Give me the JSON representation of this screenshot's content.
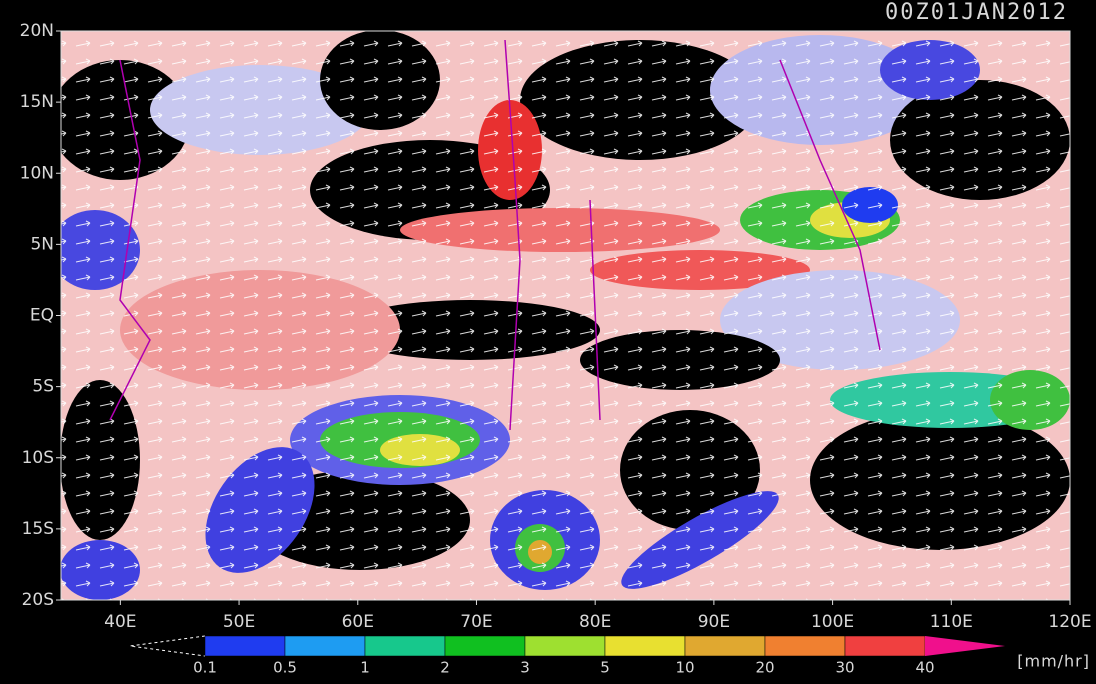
{
  "map": {
    "title": "00Z01JAN2012",
    "lonlim": [
      35,
      120
    ],
    "latlim": [
      -20,
      20
    ],
    "lon_ticks": [
      {
        "value": 40,
        "label": "40E"
      },
      {
        "value": 50,
        "label": "50E"
      },
      {
        "value": 60,
        "label": "60E"
      },
      {
        "value": 70,
        "label": "70E"
      },
      {
        "value": 80,
        "label": "80E"
      },
      {
        "value": 90,
        "label": "90E"
      },
      {
        "value": 100,
        "label": "100E"
      },
      {
        "value": 110,
        "label": "110E"
      },
      {
        "value": 120,
        "label": "120E"
      }
    ],
    "lat_ticks": [
      {
        "value": 20,
        "label": "20N"
      },
      {
        "value": 15,
        "label": "15N"
      },
      {
        "value": 10,
        "label": "10N"
      },
      {
        "value": 5,
        "label": "5N"
      },
      {
        "value": 0,
        "label": "EQ"
      },
      {
        "value": -5,
        "label": "5S"
      },
      {
        "value": -10,
        "label": "10S"
      },
      {
        "value": -15,
        "label": "15S"
      },
      {
        "value": -20,
        "label": "20S"
      }
    ],
    "colorbar": {
      "levels": [
        0.1,
        0.5,
        1,
        2,
        3,
        5,
        10,
        20,
        30,
        40
      ],
      "colors": [
        "#1f3cf0",
        "#1e9cf2",
        "#17c88c",
        "#10c020",
        "#9ee030",
        "#e8e030",
        "#e0a830",
        "#f08030",
        "#f04040",
        "#f0108c"
      ],
      "unit": "[mm/hr]"
    }
  }
}
